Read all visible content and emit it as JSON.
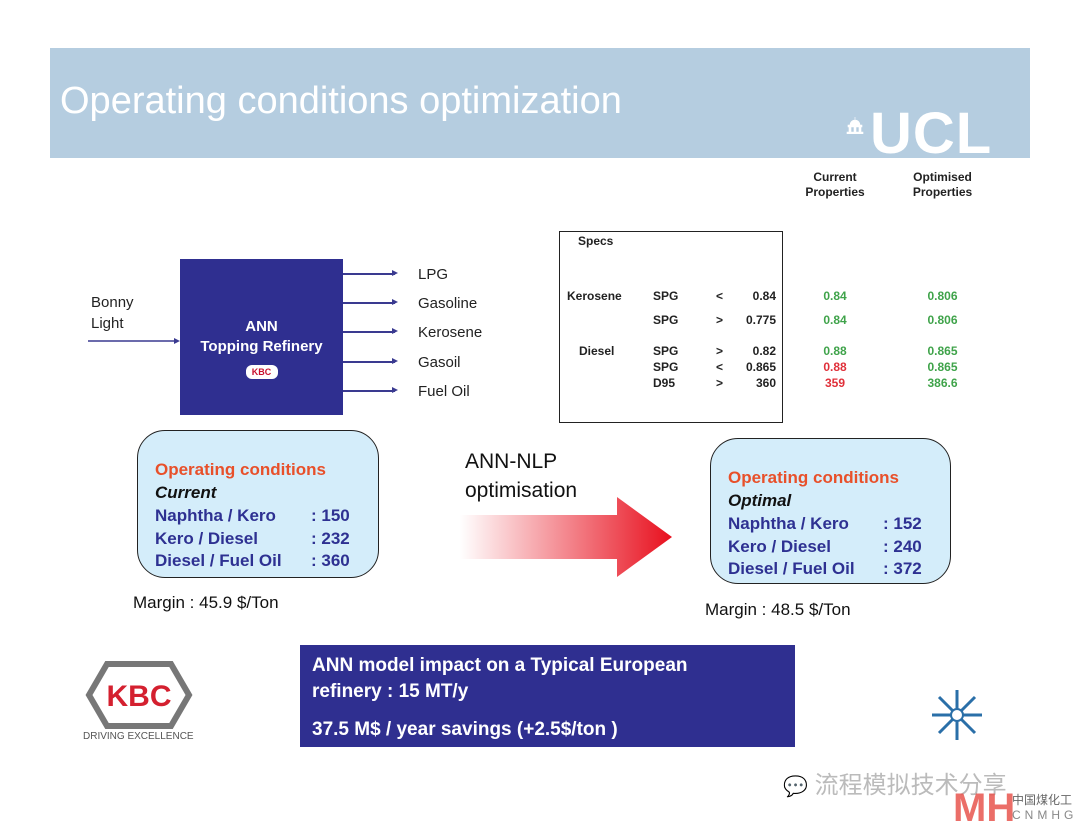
{
  "title": "Operating conditions optimization",
  "logo_ucl": "UCL",
  "table": {
    "headers": {
      "specs": "Specs",
      "current": "Current Properties",
      "optimised": "Optimised Properties"
    },
    "rows": [
      {
        "product": "Kerosene",
        "prop": "SPG",
        "op": "<",
        "limit": "0.84",
        "current": "0.84",
        "current_status": "ok",
        "optimised": "0.806"
      },
      {
        "product": "",
        "prop": "SPG",
        "op": ">",
        "limit": "0.775",
        "current": "0.84",
        "current_status": "ok",
        "optimised": "0.806"
      },
      {
        "product": "Diesel",
        "prop": "SPG",
        "op": ">",
        "limit": "0.82",
        "current": "0.88",
        "current_status": "ok",
        "optimised": "0.865"
      },
      {
        "product": "",
        "prop": "SPG",
        "op": "<",
        "limit": "0.865",
        "current": "0.88",
        "current_status": "violation",
        "optimised": "0.865"
      },
      {
        "product": "",
        "prop": "D95",
        "op": ">",
        "limit": "360",
        "current": "359",
        "current_status": "violation",
        "optimised": "386.6"
      }
    ],
    "colors": {
      "ok": "#3fa34a",
      "violation": "#e0303a"
    }
  },
  "diagram": {
    "feed": "Bonny Light",
    "unit_line1": "ANN",
    "unit_line2": "Topping Refinery",
    "unit_logo": "KBC",
    "products": [
      "LPG",
      "Gasoline",
      "Kerosene",
      "Gasoil",
      "Fuel Oil"
    ]
  },
  "current": {
    "heading": "Operating conditions",
    "subheading": "Current",
    "items": [
      {
        "k": "Naphtha / Kero",
        "v": ": 150"
      },
      {
        "k": "Kero / Diesel",
        "v": ": 232"
      },
      {
        "k": "Diesel / Fuel Oil",
        "v": ": 360"
      }
    ],
    "margin": "Margin : 45.9 $/Ton"
  },
  "arrow_label": {
    "line1": "ANN-NLP",
    "line2": "optimisation"
  },
  "optimal": {
    "heading": "Operating conditions",
    "subheading": "Optimal",
    "items": [
      {
        "k": "Naphtha / Kero",
        "v": ": 152"
      },
      {
        "k": "Kero / Diesel",
        "v": ": 240"
      },
      {
        "k": "Diesel / Fuel Oil",
        "v": ": 372"
      }
    ],
    "margin": "Margin : 48.5 $/Ton"
  },
  "impact": {
    "line1": "ANN model impact on a Typical European",
    "line2": "refinery : 15 MT/y",
    "line3": "37.5 M$ / year savings (+2.5$/ton )"
  },
  "kbc_logo": {
    "name": "KBC",
    "tagline": "DRIVING EXCELLENCE"
  },
  "watermark": {
    "text": "流程模拟技术分享",
    "brand_cn": "中国煤化工",
    "brand_en": "CNMHG"
  },
  "colors": {
    "banner": "#b5cde0",
    "navy": "#2f2f90",
    "accent_red": "#e8502a",
    "box_fill": "#d4edfa"
  }
}
